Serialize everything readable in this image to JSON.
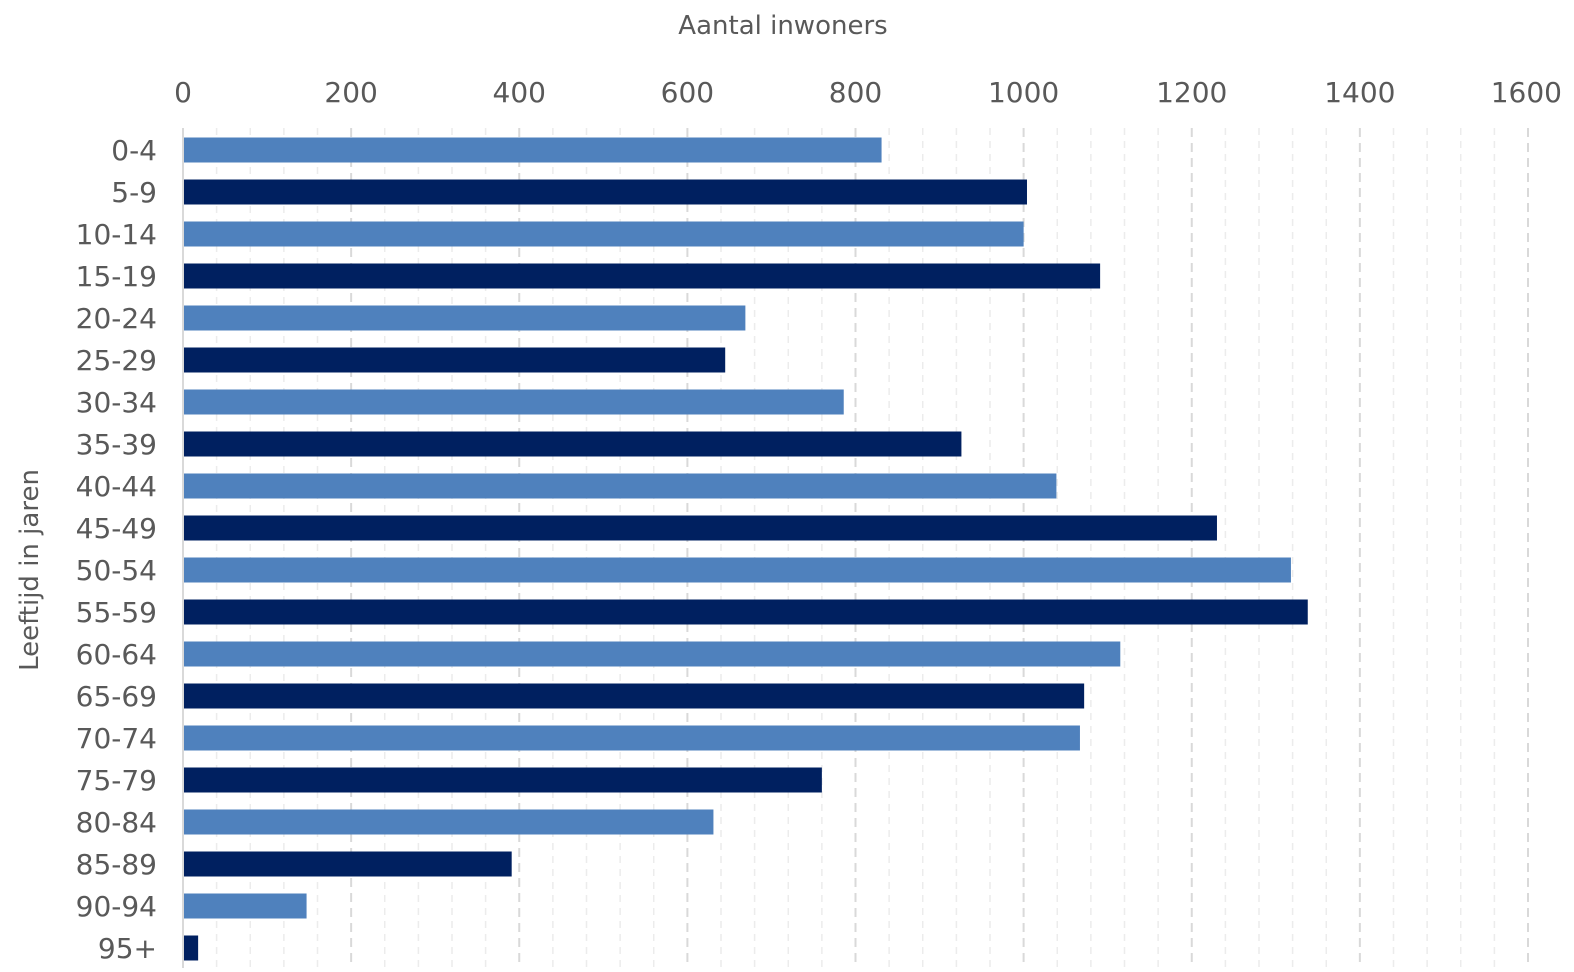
{
  "chart_data": {
    "type": "bar",
    "orientation": "horizontal",
    "xlabel": "Aantal inwoners",
    "ylabel": "Leeftijd in jaren",
    "xlim": [
      0,
      1600
    ],
    "x_ticks": [
      0,
      200,
      400,
      600,
      800,
      1000,
      1200,
      1400,
      1600
    ],
    "grid": true,
    "categories": [
      "0-4",
      "5-9",
      "10-14",
      "15-19",
      "20-24",
      "25-29",
      "30-34",
      "35-39",
      "40-44",
      "45-49",
      "50-54",
      "55-59",
      "60-64",
      "65-69",
      "70-74",
      "75-79",
      "80-84",
      "85-89",
      "90-94",
      "95+"
    ],
    "values": [
      831,
      1004,
      1000,
      1091,
      669,
      645,
      786,
      926,
      1039,
      1230,
      1318,
      1338,
      1115,
      1072,
      1067,
      760,
      631,
      391,
      147,
      18
    ],
    "colors": {
      "light": "#4f81bd",
      "dark": "#002060",
      "grid_major": "#d9d9d9",
      "grid_minor": "#ececec",
      "axis": "#d9d9d9",
      "text": "#595959"
    }
  }
}
